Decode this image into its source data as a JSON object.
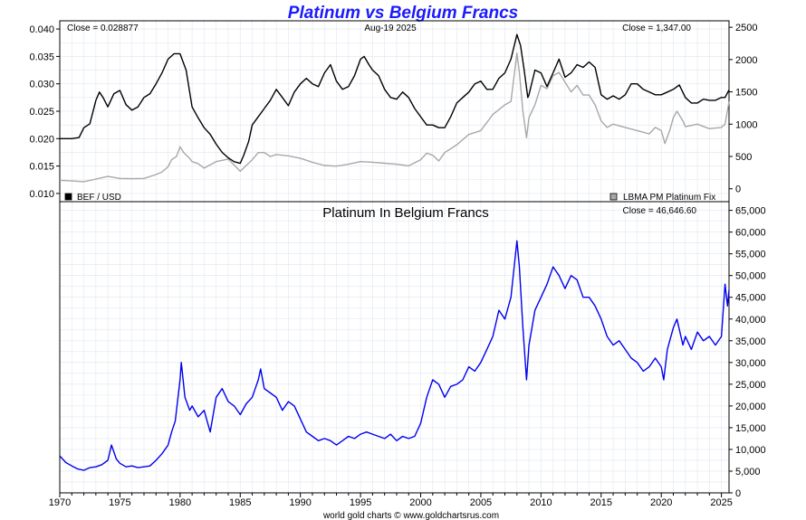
{
  "title": "Platinum vs Belgium Francs",
  "footer": "world gold charts © www.goldchartsrus.com",
  "colors": {
    "title": "#1a1aff",
    "bef_usd": "#000000",
    "platinum_usd": "#a8a8a8",
    "platinum_bef": "#0000ee",
    "grid": "#dfe6ef"
  },
  "chart_data": [
    {
      "type": "line",
      "panel": "top",
      "date_label": "Aug-19  2025",
      "left_close_label": "Close = 0.028877",
      "right_close_label": "Close = 1,347.00",
      "legend": [
        "BEF / USD",
        "LBMA PM Platinum Fix"
      ],
      "legend_placement": "bottom-left and bottom-right",
      "grid": true,
      "x_ticks": [
        "1970",
        "1975",
        "1980",
        "1985",
        "1990",
        "1995",
        "2000",
        "2005",
        "2010",
        "2015",
        "2020",
        "2025"
      ],
      "x_range": [
        1970,
        2025.63
      ],
      "left_axis": {
        "range": [
          0.0085,
          0.0415
        ],
        "ticks": [
          "0.010",
          "0.015",
          "0.020",
          "0.025",
          "0.030",
          "0.035",
          "0.040"
        ]
      },
      "right_axis": {
        "range": [
          -200,
          2600
        ],
        "ticks": [
          "0",
          "500",
          "1000",
          "1500",
          "2000",
          "2500"
        ]
      },
      "series": [
        {
          "name": "BEF / USD",
          "axis": "left",
          "x": [
            1970,
            1971,
            1971.6,
            1972,
            1972.5,
            1973,
            1973.3,
            1973.6,
            1974,
            1974.5,
            1975,
            1975.5,
            1976,
            1976.5,
            1977,
            1977.5,
            1978,
            1978.5,
            1979,
            1979.5,
            1980,
            1980.5,
            1981,
            1981.5,
            1982,
            1982.5,
            1983,
            1983.5,
            1984,
            1984.5,
            1985,
            1985.3,
            1985.7,
            1986,
            1986.5,
            1987,
            1987.5,
            1988,
            1988.5,
            1989,
            1989.5,
            1990,
            1990.5,
            1991,
            1991.5,
            1992,
            1992.5,
            1993,
            1993.5,
            1994,
            1994.5,
            1995,
            1995.3,
            1995.7,
            1996,
            1996.5,
            1997,
            1997.5,
            1998,
            1998.5,
            1999,
            1999.5,
            2000,
            2000.5,
            2001,
            2001.5,
            2002,
            2002.5,
            2003,
            2003.5,
            2004,
            2004.5,
            2005,
            2005.5,
            2006,
            2006.5,
            2007,
            2007.5,
            2008,
            2008.3,
            2008.6,
            2008.9,
            2009,
            2009.5,
            2010,
            2010.5,
            2011,
            2011.5,
            2012,
            2012.5,
            2013,
            2013.5,
            2014,
            2014.5,
            2015,
            2015.5,
            2016,
            2016.5,
            2017,
            2017.5,
            2018,
            2018.5,
            2019,
            2019.5,
            2020,
            2020.5,
            2021,
            2021.5,
            2022,
            2022.5,
            2023,
            2023.5,
            2024,
            2024.5,
            2025,
            2025.3,
            2025.63
          ],
          "y": [
            0.02,
            0.02,
            0.0202,
            0.022,
            0.0227,
            0.027,
            0.0285,
            0.0275,
            0.0258,
            0.0282,
            0.0288,
            0.0262,
            0.0252,
            0.0258,
            0.0275,
            0.0282,
            0.03,
            0.032,
            0.0345,
            0.0355,
            0.0355,
            0.0325,
            0.0258,
            0.0238,
            0.022,
            0.0208,
            0.019,
            0.0175,
            0.0165,
            0.0158,
            0.0155,
            0.017,
            0.0195,
            0.0225,
            0.024,
            0.0255,
            0.027,
            0.029,
            0.0275,
            0.026,
            0.0285,
            0.03,
            0.031,
            0.03,
            0.0295,
            0.032,
            0.0335,
            0.0305,
            0.029,
            0.0295,
            0.0315,
            0.0345,
            0.035,
            0.0335,
            0.0325,
            0.0315,
            0.029,
            0.0275,
            0.0272,
            0.0285,
            0.0275,
            0.0255,
            0.024,
            0.0225,
            0.0225,
            0.022,
            0.022,
            0.024,
            0.0265,
            0.0275,
            0.0285,
            0.03,
            0.0305,
            0.029,
            0.029,
            0.031,
            0.032,
            0.0345,
            0.039,
            0.037,
            0.0325,
            0.0275,
            0.028,
            0.0325,
            0.032,
            0.0295,
            0.032,
            0.0345,
            0.0312,
            0.032,
            0.0335,
            0.033,
            0.034,
            0.033,
            0.028,
            0.0272,
            0.0278,
            0.0272,
            0.028,
            0.03,
            0.03,
            0.029,
            0.0285,
            0.028,
            0.028,
            0.0285,
            0.029,
            0.0298,
            0.0275,
            0.0265,
            0.0265,
            0.0272,
            0.027,
            0.027,
            0.0275,
            0.0275,
            0.0289
          ],
          "color": "#000000"
        },
        {
          "name": "LBMA PM Platinum Fix",
          "axis": "right",
          "x": [
            1970,
            1971,
            1972,
            1973,
            1974,
            1975,
            1976,
            1977,
            1978,
            1978.5,
            1979,
            1979.3,
            1979.7,
            1980,
            1980.3,
            1980.8,
            1981,
            1981.5,
            1982,
            1983,
            1984,
            1985,
            1986,
            1986.5,
            1987,
            1987.5,
            1988,
            1989,
            1990,
            1991,
            1992,
            1993,
            1994,
            1995,
            1996,
            1997,
            1998,
            1999,
            2000,
            2000.5,
            2001,
            2001.5,
            2002,
            2003,
            2004,
            2005,
            2006,
            2007,
            2007.5,
            2008,
            2008.2,
            2008.5,
            2008.8,
            2009,
            2009.5,
            2010,
            2010.5,
            2011,
            2011.5,
            2012,
            2012.5,
            2013,
            2013.5,
            2014,
            2014.5,
            2015,
            2015.5,
            2016,
            2017,
            2018,
            2019,
            2019.5,
            2020,
            2020.3,
            2020.7,
            2021,
            2021.3,
            2021.8,
            2022,
            2023,
            2024,
            2025,
            2025.3,
            2025.63
          ],
          "y": [
            130,
            120,
            110,
            150,
            190,
            160,
            155,
            160,
            220,
            260,
            340,
            450,
            500,
            650,
            560,
            470,
            420,
            390,
            320,
            420,
            460,
            270,
            450,
            560,
            560,
            500,
            530,
            510,
            470,
            410,
            360,
            350,
            380,
            420,
            410,
            395,
            380,
            355,
            450,
            550,
            520,
            430,
            560,
            680,
            840,
            900,
            1150,
            1300,
            1350,
            2100,
            1800,
            1200,
            790,
            1100,
            1300,
            1600,
            1550,
            1750,
            1800,
            1650,
            1500,
            1600,
            1450,
            1450,
            1300,
            1050,
            950,
            1000,
            950,
            900,
            850,
            950,
            900,
            700,
            900,
            1100,
            1200,
            1050,
            960,
            1000,
            930,
            950,
            1000,
            1347
          ],
          "color": "#a8a8a8"
        }
      ]
    },
    {
      "type": "line",
      "panel": "bottom",
      "title": "Platinum In Belgium Francs",
      "close_label": "Close = 46,646.60",
      "grid": true,
      "x_ticks": [
        "1970",
        "1975",
        "1980",
        "1985",
        "1990",
        "1995",
        "2000",
        "2005",
        "2010",
        "2015",
        "2020",
        "2025"
      ],
      "x_range": [
        1970,
        2025.63
      ],
      "y_range": [
        0,
        67000
      ],
      "y_ticks": [
        "0",
        "5,000",
        "10,000",
        "15,000",
        "20,000",
        "25,000",
        "30,000",
        "35,000",
        "40,000",
        "45,000",
        "50,000",
        "55,000",
        "60,000",
        "65,000"
      ],
      "series": [
        {
          "name": "Platinum In Belgium Francs",
          "x": [
            1970,
            1970.5,
            1971,
            1971.5,
            1972,
            1972.5,
            1973,
            1973.5,
            1974,
            1974.3,
            1974.7,
            1975,
            1975.5,
            1976,
            1976.5,
            1977,
            1977.5,
            1978,
            1978.5,
            1979,
            1979.3,
            1979.6,
            1980,
            1980.1,
            1980.4,
            1980.8,
            1981,
            1981.5,
            1982,
            1982.5,
            1983,
            1983.5,
            1984,
            1984.5,
            1985,
            1985.5,
            1986,
            1986.5,
            1986.7,
            1987,
            1987.5,
            1988,
            1988.5,
            1989,
            1989.5,
            1990,
            1990.5,
            1991,
            1991.5,
            1992,
            1992.5,
            1993,
            1993.5,
            1994,
            1994.5,
            1995,
            1995.5,
            1996,
            1996.5,
            1997,
            1997.5,
            1998,
            1998.5,
            1999,
            1999.5,
            2000,
            2000.5,
            2001,
            2001.5,
            2002,
            2002.5,
            2003,
            2003.5,
            2004,
            2004.5,
            2005,
            2005.5,
            2006,
            2006.5,
            2007,
            2007.5,
            2008,
            2008.2,
            2008.5,
            2008.8,
            2009,
            2009.5,
            2010,
            2010.5,
            2011,
            2011.5,
            2012,
            2012.5,
            2013,
            2013.5,
            2014,
            2014.5,
            2015,
            2015.5,
            2016,
            2016.5,
            2017,
            2017.5,
            2018,
            2018.5,
            2019,
            2019.5,
            2020,
            2020.2,
            2020.5,
            2021,
            2021.3,
            2021.8,
            2022,
            2022.5,
            2023,
            2023.5,
            2024,
            2024.5,
            2025,
            2025.3,
            2025.5,
            2025.63
          ],
          "y": [
            8500,
            7000,
            6200,
            5500,
            5200,
            5800,
            6000,
            6500,
            7500,
            11000,
            7800,
            6800,
            6000,
            6200,
            5800,
            6000,
            6200,
            7500,
            9000,
            11000,
            14000,
            16500,
            26000,
            30000,
            22000,
            19000,
            20000,
            17500,
            19000,
            14000,
            22000,
            24000,
            21000,
            20000,
            18000,
            20500,
            22000,
            26000,
            28500,
            24000,
            23000,
            22000,
            19000,
            21000,
            20000,
            17000,
            14000,
            13000,
            12000,
            12500,
            12000,
            11000,
            12000,
            13000,
            12500,
            13500,
            14000,
            13500,
            13000,
            12500,
            13500,
            12000,
            13000,
            12500,
            13000,
            16000,
            22000,
            26000,
            25000,
            22000,
            24500,
            25000,
            26000,
            29000,
            28000,
            30000,
            33000,
            36000,
            42000,
            40000,
            45000,
            58000,
            52000,
            38000,
            26000,
            34000,
            42000,
            45000,
            48000,
            52000,
            50000,
            47000,
            50000,
            49000,
            45000,
            45000,
            43000,
            40000,
            36000,
            34000,
            35000,
            33000,
            31000,
            30000,
            28000,
            29000,
            31000,
            29000,
            26000,
            33000,
            38000,
            40000,
            34000,
            36000,
            33000,
            37000,
            35000,
            36000,
            34000,
            36000,
            48000,
            43000,
            46647
          ],
          "color": "#0000ee"
        }
      ]
    }
  ]
}
